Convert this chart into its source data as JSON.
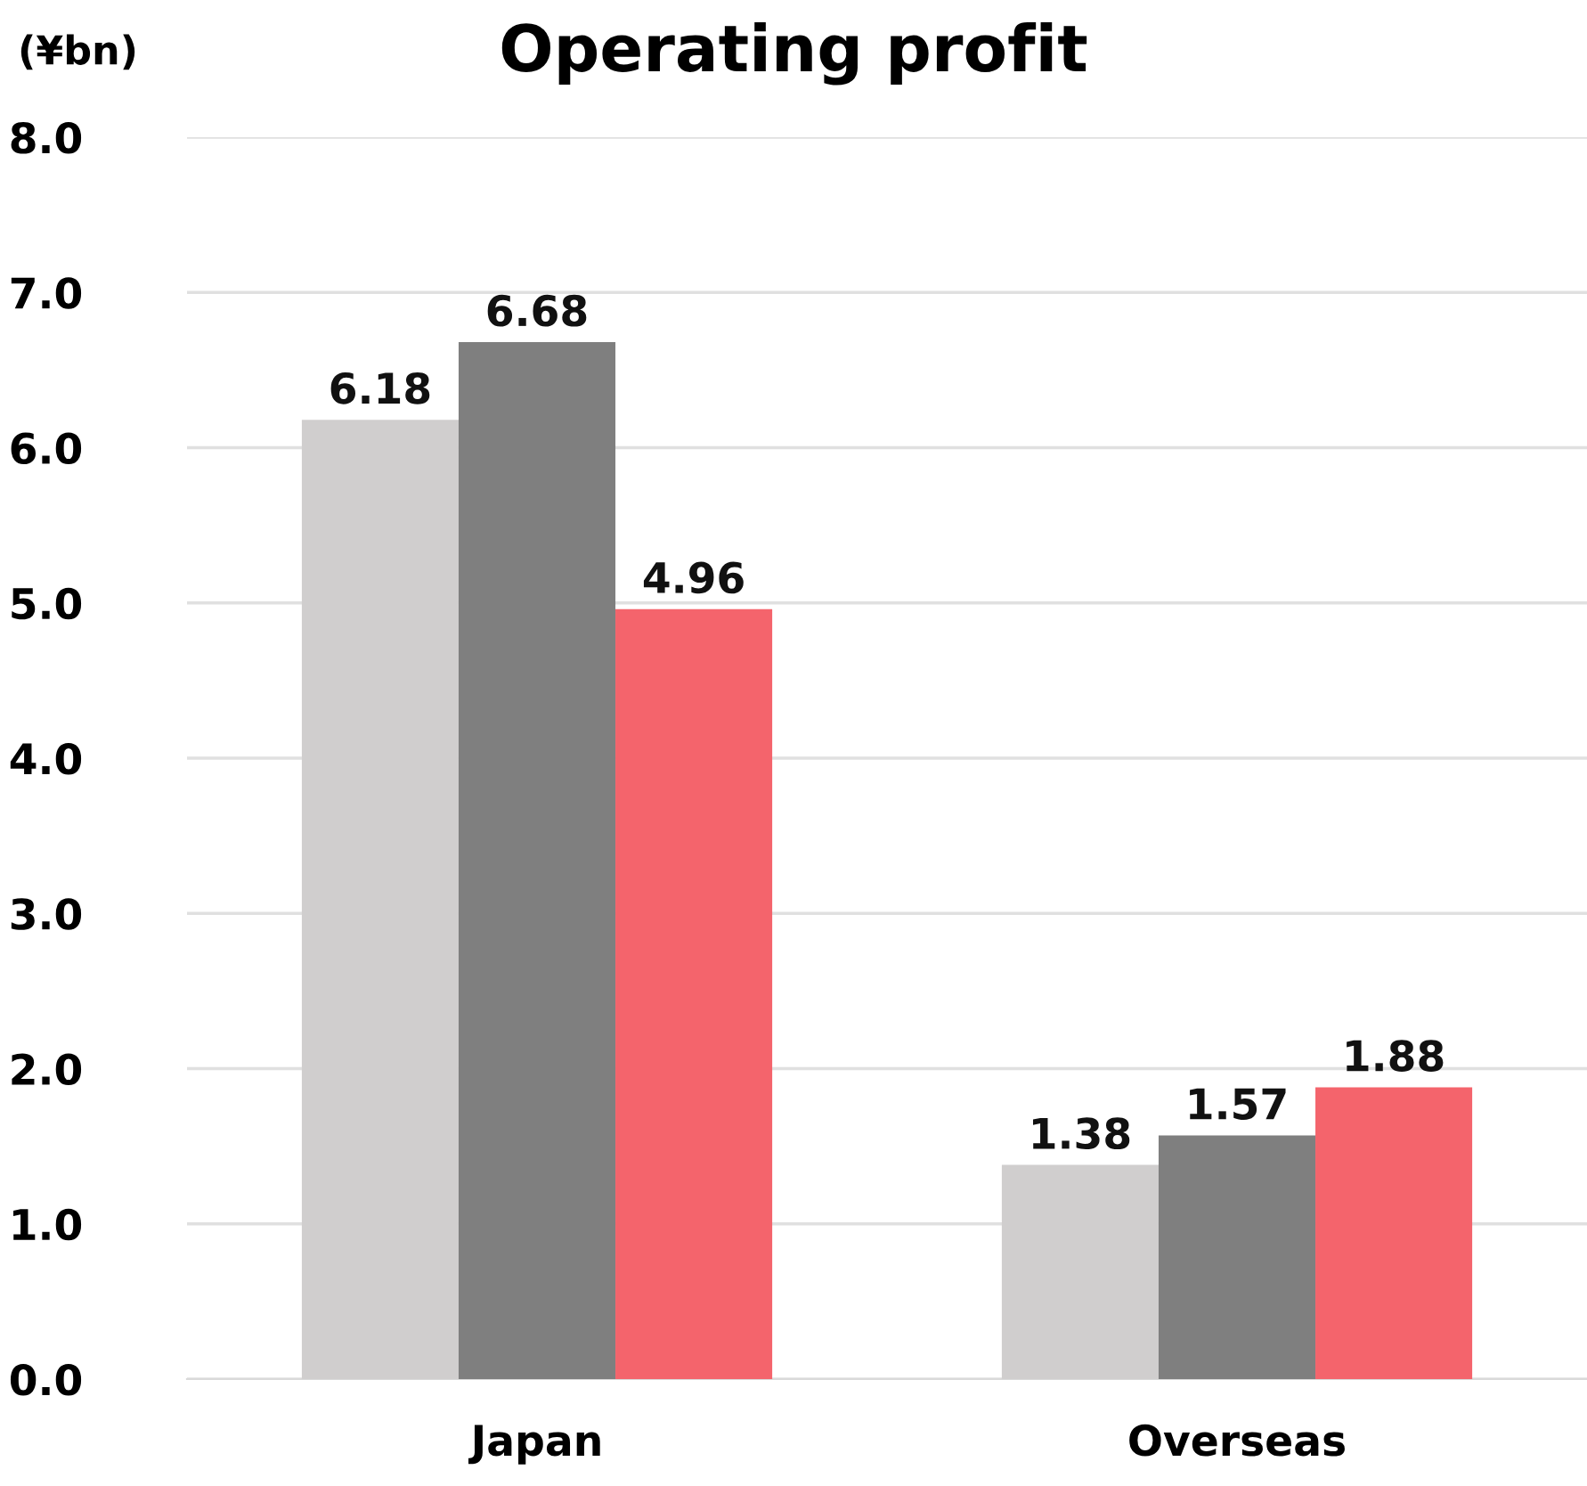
{
  "chart_data": {
    "type": "bar",
    "title": "Operating profit",
    "ylabel": "(¥bn)",
    "categories": [
      "Japan",
      "Overseas"
    ],
    "series": [
      {
        "color": "#d0cece",
        "values": [
          6.18,
          1.38
        ]
      },
      {
        "color": "#7f7f7f",
        "values": [
          6.68,
          1.57
        ]
      },
      {
        "color": "#f4646c",
        "values": [
          4.96,
          1.88
        ]
      }
    ],
    "ylim": [
      0,
      8
    ],
    "yticks": [
      {
        "value": 0,
        "label": "0.0"
      },
      {
        "value": 1,
        "label": "1.0"
      },
      {
        "value": 2,
        "label": "2.0"
      },
      {
        "value": 3,
        "label": "3.0"
      },
      {
        "value": 4,
        "label": "4.0"
      },
      {
        "value": 5,
        "label": "5.0"
      },
      {
        "value": 6,
        "label": "6.0"
      },
      {
        "value": 7,
        "label": "7.0"
      },
      {
        "value": 8,
        "label": "8.0"
      }
    ],
    "grid": "y",
    "data_labels": true,
    "legend": false
  }
}
